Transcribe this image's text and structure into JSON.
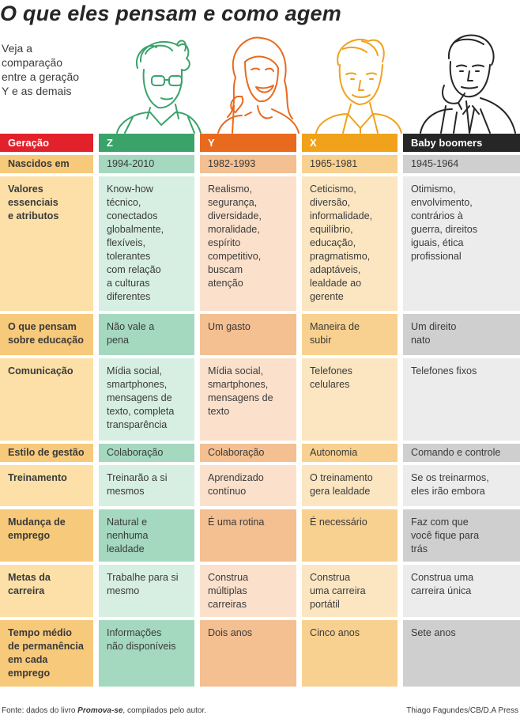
{
  "title": "O que eles pensam e como agem",
  "intro": [
    "Veja a",
    "comparação",
    "entre a geração",
    "Y e as demais"
  ],
  "colors": {
    "header_label": "#e2212b",
    "z": {
      "header": "#3aa36a",
      "dark": "#a4d9bf",
      "light": "#d7eee3"
    },
    "y": {
      "header": "#e86a1f",
      "dark": "#f4bf91",
      "light": "#fbe1cc"
    },
    "x": {
      "header": "#f0a21b",
      "dark": "#f8d08f",
      "light": "#fce6c2"
    },
    "bb": {
      "header": "#262626",
      "dark": "#cfcfcf",
      "light": "#ececec"
    },
    "label_dark": "#f7c97a",
    "label_light": "#fce0a8"
  },
  "headers": {
    "label": "Geração",
    "z": "Z",
    "y": "Y",
    "x": "X",
    "bb": "Baby boomers"
  },
  "rows": [
    {
      "label": [
        "Nascidos em"
      ],
      "z": [
        "1994-2010"
      ],
      "y": [
        "1982-1993"
      ],
      "x": [
        "1965-1981"
      ],
      "bb": [
        "1945-1964"
      ]
    },
    {
      "label": [
        "Valores",
        "essenciais",
        "e atributos"
      ],
      "z": [
        "Know-how",
        "técnico,",
        "conectados",
        "globalmente,",
        "flexíveis,",
        "tolerantes",
        "com relação",
        "a culturas",
        "diferentes"
      ],
      "y": [
        "Realismo,",
        "segurança,",
        "diversidade,",
        "moralidade,",
        "espírito",
        "competitivo,",
        "buscam",
        "atenção"
      ],
      "x": [
        "Ceticismo,",
        "diversão,",
        "informalidade,",
        "equilíbrio,",
        "educação,",
        "pragmatismo,",
        "adaptáveis,",
        "lealdade ao",
        "gerente"
      ],
      "bb": [
        "Otimismo,",
        "envolvimento,",
        "contrários à",
        "guerra, direitos",
        "iguais, ética",
        "profissional"
      ]
    },
    {
      "label": [
        "O que pensam",
        "sobre educação"
      ],
      "z": [
        "Não vale a",
        "pena"
      ],
      "y": [
        "Um gasto"
      ],
      "x": [
        "Maneira de",
        "subir"
      ],
      "bb": [
        "Um direito",
        "nato"
      ]
    },
    {
      "label": [
        "Comunicação"
      ],
      "z": [
        "Mídia social,",
        "smartphones,",
        "mensagens de",
        "texto, completa",
        "transparência"
      ],
      "y": [
        "Mídia social,",
        "smartphones,",
        "mensagens de",
        "texto"
      ],
      "x": [
        "Telefones",
        "celulares"
      ],
      "bb": [
        "Telefones fixos"
      ]
    },
    {
      "label": [
        "Estilo de gestão"
      ],
      "z": [
        "Colaboração"
      ],
      "y": [
        "Colaboração"
      ],
      "x": [
        "Autonomia"
      ],
      "bb": [
        "Comando e controle"
      ]
    },
    {
      "label": [
        "Treinamento"
      ],
      "z": [
        "Treinarão a si",
        "mesmos"
      ],
      "y": [
        "Aprendizado",
        "contínuo"
      ],
      "x": [
        "O treinamento",
        "gera lealdade"
      ],
      "bb": [
        "Se os treinarmos,",
        "eles irão embora"
      ]
    },
    {
      "label": [
        "Mudança de",
        "emprego"
      ],
      "z": [
        "Natural e",
        "nenhuma",
        "lealdade"
      ],
      "y": [
        "É uma rotina"
      ],
      "x": [
        "É necessário"
      ],
      "bb": [
        "Faz com que",
        "você fique para",
        "trás"
      ]
    },
    {
      "label": [
        "Metas da",
        "carreira"
      ],
      "z": [
        "Trabalhe para si",
        "mesmo"
      ],
      "y": [
        "Construa",
        "múltiplas",
        "carreiras"
      ],
      "x": [
        "Construa",
        "uma carreira",
        "portátil"
      ],
      "bb": [
        "Construa uma",
        "carreira única"
      ]
    },
    {
      "label": [
        "Tempo médio",
        "de permanência",
        "em cada",
        "emprego"
      ],
      "z": [
        "Informações",
        "não disponíveis"
      ],
      "y": [
        "Dois anos"
      ],
      "x": [
        "Cinco anos"
      ],
      "bb": [
        "Sete anos"
      ]
    }
  ],
  "footer": {
    "source_prefix": "Fonte: dados do livro ",
    "source_book": "Promova-se",
    "source_suffix": ", compilados pelo autor.",
    "credit": "Thiago Fagundes/CB/D.A Press"
  }
}
